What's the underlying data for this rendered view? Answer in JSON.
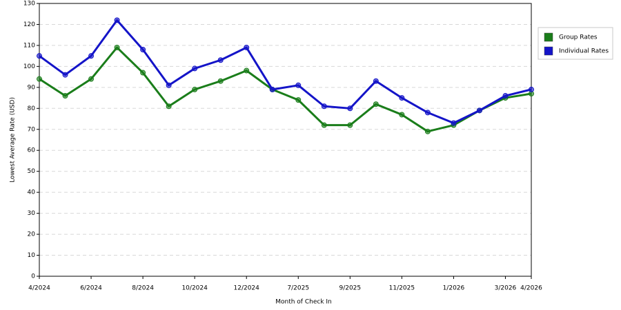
{
  "chart_data": {
    "type": "line",
    "y_label": "Lowest Average Rate (USD)",
    "x_label": "Month of Check In",
    "categories": [
      "4/2024",
      null,
      "6/2024",
      null,
      "8/2024",
      null,
      "10/2024",
      null,
      "12/2024",
      null,
      "7/2025",
      null,
      "9/2025",
      null,
      "11/2025",
      null,
      "1/2026",
      null,
      "3/2026",
      "4/2026"
    ],
    "series": [
      {
        "name": "Group Rates",
        "color": "#1a7d1a",
        "values": [
          94,
          86,
          94,
          109,
          97,
          81,
          89,
          93,
          98,
          89,
          84,
          72,
          72,
          82,
          77,
          69,
          72,
          79,
          85,
          87
        ]
      },
      {
        "name": "Individual Rates",
        "color": "#1414c8",
        "values": [
          105,
          96,
          105,
          122,
          108,
          91,
          99,
          103,
          109,
          89,
          91,
          81,
          80,
          93,
          85,
          78,
          73,
          79,
          86,
          89
        ]
      }
    ],
    "ylim": [
      0,
      130
    ],
    "yticks": [
      0,
      10,
      20,
      30,
      40,
      50,
      60,
      70,
      80,
      90,
      100,
      110,
      120,
      130
    ],
    "grid": true,
    "legend": "right"
  }
}
